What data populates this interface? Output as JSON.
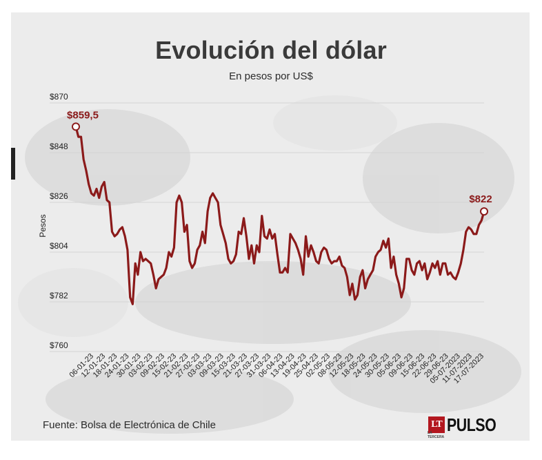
{
  "chart_data": {
    "type": "line",
    "title": "Evolución del dólar",
    "subtitle": "En pesos por US$",
    "ylabel": "Pesos",
    "xlabel": "",
    "ylim": [
      760,
      870
    ],
    "yticks": [
      760,
      782,
      804,
      826,
      848,
      870
    ],
    "ytick_labels": [
      "$760",
      "$782",
      "$804",
      "$826",
      "$848",
      "$870"
    ],
    "grid": true,
    "line_color": "#8b1a1a",
    "x_tick_labels": [
      "06-01-23",
      "12-01-23",
      "18-01-23",
      "24-01-23",
      "30-01-23",
      "03-02-23",
      "09-02-23",
      "15-02-23",
      "21-02-23",
      "27-02-23",
      "03-03-23",
      "09-03-23",
      "15-03-23",
      "21-03-23",
      "27-03-23",
      "31-03-23",
      "06-04-23",
      "13-04-23",
      "19-04-23",
      "25-04-23",
      "02-05-23",
      "08-05-23",
      "12-05-23",
      "18-05-23",
      "24-05-23",
      "30-05-23",
      "05-06-23",
      "09-06-23",
      "15-06-23",
      "22-06-23",
      "29-06-23",
      "05-07-2023",
      "11-07-2023",
      "17-07-2023"
    ],
    "values": [
      859.5,
      855,
      855,
      845,
      840,
      834,
      830,
      829,
      832,
      828,
      833,
      835,
      827,
      826,
      813,
      811,
      812,
      814,
      815,
      811,
      805,
      784,
      781,
      799,
      794,
      804,
      800,
      801,
      800,
      799,
      794,
      788,
      792,
      793,
      794,
      797,
      804,
      802,
      806,
      826,
      829,
      826,
      813,
      816,
      800,
      797,
      799,
      805,
      807,
      813,
      808,
      822,
      828,
      830,
      828,
      826,
      816,
      812,
      808,
      801,
      799,
      800,
      803,
      813,
      812,
      819,
      811,
      801,
      807,
      799,
      807,
      804,
      820,
      811,
      810,
      814,
      810,
      812,
      803,
      795,
      795,
      797,
      795,
      812,
      810,
      808,
      805,
      801,
      794,
      811,
      802,
      807,
      804,
      800,
      799,
      804,
      806,
      805,
      801,
      799,
      800,
      800,
      802,
      798,
      797,
      793,
      785,
      790,
      783,
      785,
      793,
      796,
      788,
      792,
      794,
      796,
      802,
      804,
      805,
      809,
      806,
      810,
      797,
      802,
      794,
      790,
      784,
      788,
      801,
      801,
      796,
      794,
      799,
      800,
      796,
      799,
      792,
      795,
      799,
      797,
      800,
      794,
      799,
      799,
      794,
      795,
      793,
      792,
      795,
      799,
      805,
      813,
      815,
      814,
      812,
      812,
      816,
      818,
      822
    ],
    "annotations": [
      {
        "label": "$859,5",
        "point": "first"
      },
      {
        "label": "$822",
        "point": "last"
      }
    ]
  },
  "source": "Fuente: Bolsa de Electrónica de Chile",
  "logo": {
    "box": "LT",
    "small": "LA TERCERA",
    "word": "PULSO"
  }
}
